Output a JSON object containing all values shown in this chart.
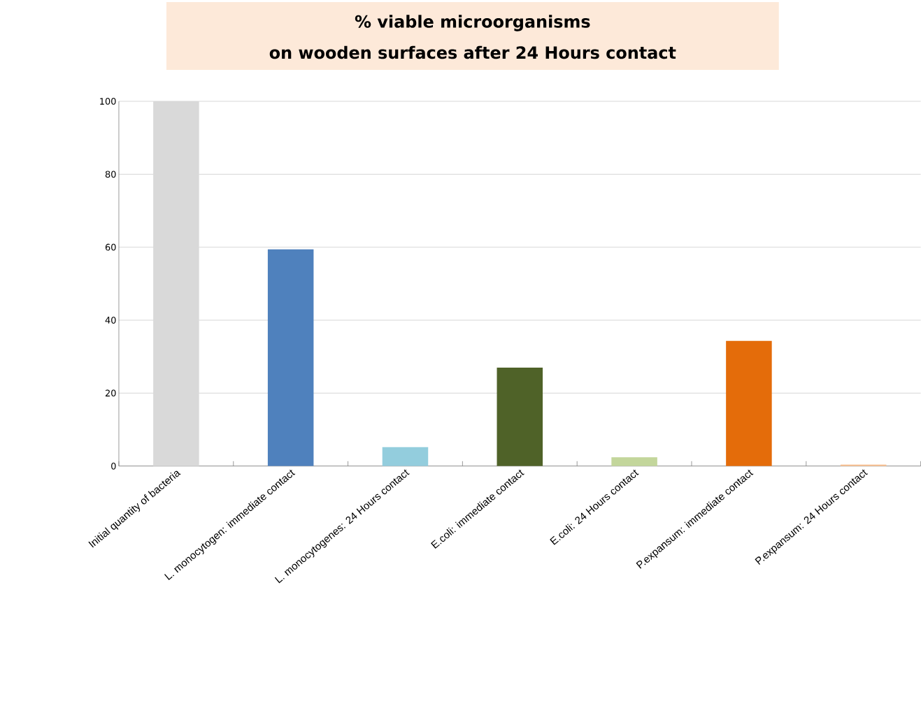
{
  "chart_data": {
    "type": "bar",
    "title": "% viable microorganisms",
    "subtitle": "on wooden surfaces after 24 Hours contact",
    "categories": [
      "Initial quantity of bacteria",
      "L. monocytogen: immediate contact",
      "L. monocytogenes: 24 Hours contact",
      "E.coli: immediate contact",
      "E.coli: 24 Hours contact",
      "P.expansum: immediate contact",
      "P.expansum: 24 Hours contact"
    ],
    "values": [
      100,
      59.4,
      5.2,
      27,
      2.4,
      34.3,
      0.4
    ],
    "colors": [
      "#d9d9d9",
      "#4f81bd",
      "#93cddd",
      "#4f6228",
      "#c3d69b",
      "#e46c0a",
      "#fac090"
    ],
    "ylim": [
      0,
      100
    ],
    "yticks": [
      0,
      20,
      40,
      60,
      80,
      100
    ],
    "grid": "y"
  }
}
